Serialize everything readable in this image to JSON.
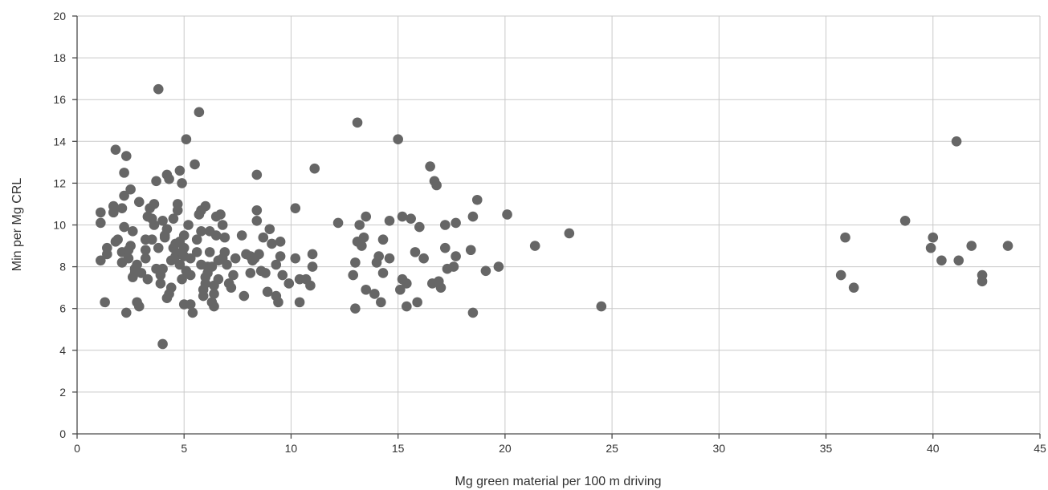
{
  "chart_data": {
    "type": "scatter",
    "xlabel": "Mg green material per 100 m driving",
    "ylabel": "Min per Mg CRL",
    "xlim": [
      0,
      45
    ],
    "ylim": [
      0,
      20
    ],
    "x_ticks": [
      0,
      5,
      10,
      15,
      20,
      25,
      30,
      35,
      40,
      45
    ],
    "y_ticks": [
      0,
      2,
      4,
      6,
      8,
      10,
      12,
      14,
      16,
      18,
      20
    ],
    "grid": true,
    "marker_color": "#666666",
    "series": [
      {
        "points": [
          [
            1.1,
            10.6
          ],
          [
            1.1,
            10.1
          ],
          [
            1.1,
            8.3
          ],
          [
            1.3,
            6.3
          ],
          [
            1.4,
            8.6
          ],
          [
            1.4,
            8.9
          ],
          [
            1.7,
            10.6
          ],
          [
            1.7,
            10.9
          ],
          [
            1.8,
            9.2
          ],
          [
            1.8,
            13.6
          ],
          [
            1.9,
            9.3
          ],
          [
            2.1,
            10.8
          ],
          [
            2.1,
            8.7
          ],
          [
            2.1,
            8.2
          ],
          [
            2.2,
            9.9
          ],
          [
            2.2,
            12.5
          ],
          [
            2.2,
            11.4
          ],
          [
            2.3,
            5.8
          ],
          [
            2.3,
            13.3
          ],
          [
            2.4,
            8.4
          ],
          [
            2.4,
            8.8
          ],
          [
            2.5,
            11.7
          ],
          [
            2.5,
            9.0
          ],
          [
            2.6,
            7.5
          ],
          [
            2.6,
            9.7
          ],
          [
            2.7,
            7.9
          ],
          [
            2.7,
            7.7
          ],
          [
            2.8,
            6.3
          ],
          [
            2.8,
            8.1
          ],
          [
            2.9,
            6.1
          ],
          [
            2.9,
            11.1
          ],
          [
            3.0,
            7.7
          ],
          [
            3.2,
            9.3
          ],
          [
            3.2,
            8.4
          ],
          [
            3.2,
            8.8
          ],
          [
            3.3,
            10.4
          ],
          [
            3.3,
            7.4
          ],
          [
            3.4,
            10.8
          ],
          [
            3.5,
            10.3
          ],
          [
            3.5,
            9.3
          ],
          [
            3.6,
            10.0
          ],
          [
            3.6,
            11.0
          ],
          [
            3.7,
            7.9
          ],
          [
            3.7,
            12.1
          ],
          [
            3.8,
            16.5
          ],
          [
            3.8,
            8.9
          ],
          [
            3.9,
            7.2
          ],
          [
            3.9,
            7.6
          ],
          [
            4.0,
            10.2
          ],
          [
            4.0,
            4.3
          ],
          [
            4.0,
            7.9
          ],
          [
            4.1,
            9.5
          ],
          [
            4.1,
            9.4
          ],
          [
            4.2,
            6.5
          ],
          [
            4.2,
            9.8
          ],
          [
            4.2,
            12.4
          ],
          [
            4.3,
            6.7
          ],
          [
            4.3,
            12.2
          ],
          [
            4.4,
            8.3
          ],
          [
            4.4,
            7.0
          ],
          [
            4.5,
            10.3
          ],
          [
            4.5,
            8.9
          ],
          [
            4.6,
            9.1
          ],
          [
            4.6,
            8.5
          ],
          [
            4.7,
            11.0
          ],
          [
            4.7,
            10.7
          ],
          [
            4.8,
            12.6
          ],
          [
            4.8,
            9.2
          ],
          [
            4.8,
            8.1
          ],
          [
            4.9,
            12.0
          ],
          [
            4.9,
            7.4
          ],
          [
            4.9,
            8.7
          ],
          [
            5.0,
            6.2
          ],
          [
            5.0,
            9.5
          ],
          [
            5.0,
            8.5
          ],
          [
            5.0,
            8.9
          ],
          [
            5.1,
            7.8
          ],
          [
            5.1,
            14.1
          ],
          [
            5.2,
            10.0
          ],
          [
            5.3,
            6.2
          ],
          [
            5.3,
            7.6
          ],
          [
            5.3,
            8.4
          ],
          [
            5.4,
            5.8
          ],
          [
            5.5,
            12.9
          ],
          [
            5.6,
            9.3
          ],
          [
            5.6,
            8.7
          ],
          [
            5.7,
            15.4
          ],
          [
            5.7,
            10.5
          ],
          [
            5.8,
            9.7
          ],
          [
            5.8,
            10.7
          ],
          [
            5.8,
            8.1
          ],
          [
            5.9,
            6.6
          ],
          [
            5.9,
            6.9
          ],
          [
            6.0,
            10.9
          ],
          [
            6.0,
            7.5
          ],
          [
            6.0,
            7.2
          ],
          [
            6.1,
            7.7
          ],
          [
            6.1,
            8.0
          ],
          [
            6.2,
            8.7
          ],
          [
            6.2,
            9.7
          ],
          [
            6.3,
            6.3
          ],
          [
            6.3,
            8.0
          ],
          [
            6.4,
            6.1
          ],
          [
            6.4,
            7.1
          ],
          [
            6.4,
            6.7
          ],
          [
            6.5,
            10.4
          ],
          [
            6.5,
            9.5
          ],
          [
            6.6,
            8.3
          ],
          [
            6.6,
            7.4
          ],
          [
            6.7,
            10.5
          ],
          [
            6.8,
            8.4
          ],
          [
            6.8,
            10.0
          ],
          [
            6.9,
            8.7
          ],
          [
            6.9,
            9.4
          ],
          [
            7.0,
            8.1
          ],
          [
            7.1,
            7.2
          ],
          [
            7.2,
            7.0
          ],
          [
            7.3,
            7.6
          ],
          [
            7.4,
            8.4
          ],
          [
            7.7,
            9.5
          ],
          [
            7.8,
            6.6
          ],
          [
            7.9,
            8.6
          ],
          [
            8.1,
            7.7
          ],
          [
            8.1,
            8.5
          ],
          [
            8.2,
            8.3
          ],
          [
            8.3,
            8.4
          ],
          [
            8.4,
            12.4
          ],
          [
            8.4,
            10.2
          ],
          [
            8.4,
            10.7
          ],
          [
            8.5,
            8.6
          ],
          [
            8.6,
            7.8
          ],
          [
            8.7,
            9.4
          ],
          [
            8.8,
            7.7
          ],
          [
            8.9,
            6.8
          ],
          [
            9.0,
            9.8
          ],
          [
            9.1,
            9.1
          ],
          [
            9.3,
            8.1
          ],
          [
            9.3,
            6.6
          ],
          [
            9.4,
            6.3
          ],
          [
            9.5,
            8.5
          ],
          [
            9.5,
            9.2
          ],
          [
            9.6,
            7.6
          ],
          [
            9.9,
            7.2
          ],
          [
            10.2,
            10.8
          ],
          [
            10.2,
            8.4
          ],
          [
            10.4,
            6.3
          ],
          [
            10.4,
            7.4
          ],
          [
            10.7,
            7.4
          ],
          [
            10.9,
            7.1
          ],
          [
            11.0,
            8.6
          ],
          [
            11.0,
            8.0
          ],
          [
            11.1,
            12.7
          ],
          [
            12.2,
            10.1
          ],
          [
            12.9,
            7.6
          ],
          [
            13.0,
            6.0
          ],
          [
            13.0,
            8.2
          ],
          [
            13.1,
            9.2
          ],
          [
            13.1,
            14.9
          ],
          [
            13.2,
            10.0
          ],
          [
            13.3,
            9.0
          ],
          [
            13.4,
            9.4
          ],
          [
            13.5,
            6.9
          ],
          [
            13.5,
            10.4
          ],
          [
            13.9,
            6.7
          ],
          [
            14.0,
            8.2
          ],
          [
            14.1,
            8.5
          ],
          [
            14.2,
            6.3
          ],
          [
            14.3,
            9.3
          ],
          [
            14.3,
            7.7
          ],
          [
            14.6,
            8.4
          ],
          [
            14.6,
            10.2
          ],
          [
            15.0,
            14.1
          ],
          [
            15.1,
            6.9
          ],
          [
            15.2,
            10.4
          ],
          [
            15.2,
            7.4
          ],
          [
            15.4,
            7.2
          ],
          [
            15.4,
            6.1
          ],
          [
            15.6,
            10.3
          ],
          [
            15.8,
            8.7
          ],
          [
            15.9,
            6.3
          ],
          [
            16.0,
            9.9
          ],
          [
            16.2,
            8.4
          ],
          [
            16.5,
            12.8
          ],
          [
            16.6,
            7.2
          ],
          [
            16.7,
            12.1
          ],
          [
            16.8,
            11.9
          ],
          [
            16.9,
            7.3
          ],
          [
            17.0,
            7.0
          ],
          [
            17.2,
            8.9
          ],
          [
            17.2,
            10.0
          ],
          [
            17.3,
            7.9
          ],
          [
            17.6,
            8.0
          ],
          [
            17.7,
            8.5
          ],
          [
            17.7,
            10.1
          ],
          [
            18.4,
            8.8
          ],
          [
            18.5,
            10.4
          ],
          [
            18.5,
            5.8
          ],
          [
            18.7,
            11.2
          ],
          [
            19.1,
            7.8
          ],
          [
            19.7,
            8.0
          ],
          [
            20.1,
            10.5
          ],
          [
            21.4,
            9.0
          ],
          [
            23.0,
            9.6
          ],
          [
            24.5,
            6.1
          ],
          [
            35.7,
            7.6
          ],
          [
            35.9,
            9.4
          ],
          [
            36.3,
            7.0
          ],
          [
            38.7,
            10.2
          ],
          [
            39.9,
            8.9
          ],
          [
            40.0,
            9.4
          ],
          [
            40.4,
            8.3
          ],
          [
            41.1,
            14.0
          ],
          [
            41.2,
            8.3
          ],
          [
            41.8,
            9.0
          ],
          [
            42.3,
            7.6
          ],
          [
            42.3,
            7.3
          ],
          [
            43.5,
            9.0
          ]
        ]
      }
    ]
  }
}
